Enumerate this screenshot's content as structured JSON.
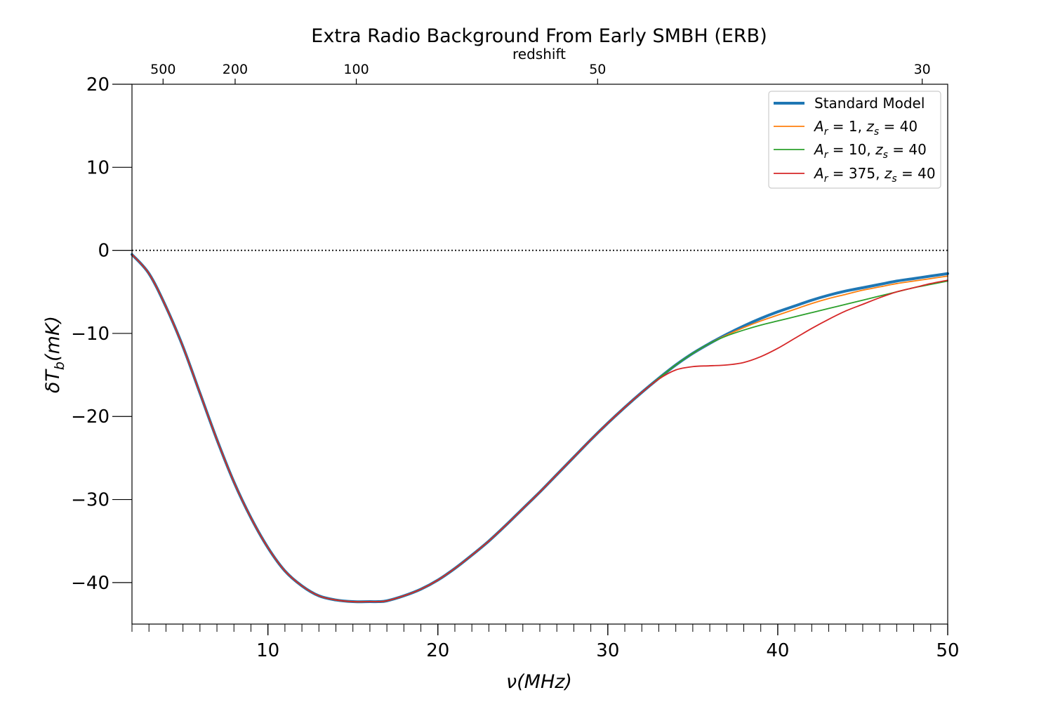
{
  "chart_data": {
    "type": "line",
    "title": "Extra Radio Background From Early SMBH (ERB)",
    "xlabel": "ν(MHz)",
    "ylabel": "δT_b(mK)",
    "top_axis_label": "redshift",
    "xlim": [
      2,
      50
    ],
    "ylim": [
      -45,
      20
    ],
    "x_ticks": [
      10,
      20,
      30,
      40,
      50
    ],
    "y_ticks": [
      20,
      10,
      0,
      -10,
      -20,
      -30,
      -40
    ],
    "top_ticks": [
      {
        "label": "500",
        "nu": 3.83
      },
      {
        "label": "200",
        "nu": 8.07
      },
      {
        "label": "100",
        "nu": 15.2
      },
      {
        "label": "50",
        "nu": 29.4
      },
      {
        "label": "30",
        "nu": 48.5
      }
    ],
    "reference_line": {
      "y": 0,
      "style": "dotted"
    },
    "grid": false,
    "legend_position": "upper right",
    "series": [
      {
        "name": "Standard Model",
        "color": "#1f77b4",
        "width": 4,
        "x": [
          2,
          3,
          4,
          5,
          6,
          7,
          8,
          9,
          10,
          11,
          12,
          13,
          14,
          15,
          16,
          16.5,
          17,
          18,
          19,
          20,
          21,
          22,
          23,
          24,
          25,
          26,
          27,
          28,
          29,
          30,
          31,
          32,
          33,
          34,
          35,
          36,
          37,
          38,
          39,
          40,
          41,
          42,
          43,
          44,
          45,
          46,
          47,
          48,
          49,
          50
        ],
        "y": [
          -0.5,
          -2.8,
          -6.8,
          -11.6,
          -17.2,
          -22.8,
          -27.9,
          -32.2,
          -35.8,
          -38.6,
          -40.4,
          -41.6,
          -42.1,
          -42.3,
          -42.3,
          -42.3,
          -42.2,
          -41.6,
          -40.8,
          -39.7,
          -38.3,
          -36.7,
          -35.0,
          -33.1,
          -31.1,
          -29.1,
          -27.0,
          -24.9,
          -22.8,
          -20.8,
          -18.9,
          -17.1,
          -15.4,
          -13.8,
          -12.4,
          -11.2,
          -10.1,
          -9.1,
          -8.2,
          -7.4,
          -6.7,
          -6.0,
          -5.4,
          -4.9,
          -4.5,
          -4.1,
          -3.7,
          -3.4,
          -3.1,
          -2.8
        ]
      },
      {
        "name": "A_r=1, z_s=40",
        "color": "#ff7f0e",
        "width": 1.8,
        "x": [
          2,
          3,
          4,
          5,
          6,
          7,
          8,
          9,
          10,
          11,
          12,
          13,
          14,
          15,
          16,
          16.5,
          17,
          18,
          19,
          20,
          21,
          22,
          23,
          24,
          25,
          26,
          27,
          28,
          29,
          30,
          31,
          32,
          33,
          34,
          35,
          36,
          37,
          38,
          39,
          40,
          41,
          42,
          43,
          44,
          45,
          46,
          47,
          48,
          49,
          50
        ],
        "y": [
          -0.5,
          -2.8,
          -6.8,
          -11.6,
          -17.2,
          -22.8,
          -27.9,
          -32.2,
          -35.8,
          -38.6,
          -40.4,
          -41.6,
          -42.1,
          -42.3,
          -42.3,
          -42.3,
          -42.2,
          -41.6,
          -40.8,
          -39.7,
          -38.3,
          -36.7,
          -35.0,
          -33.1,
          -31.1,
          -29.1,
          -27.0,
          -24.9,
          -22.8,
          -20.8,
          -18.9,
          -17.1,
          -15.4,
          -13.8,
          -12.4,
          -11.2,
          -10.2,
          -9.3,
          -8.5,
          -7.8,
          -7.1,
          -6.4,
          -5.8,
          -5.3,
          -4.8,
          -4.4,
          -4.0,
          -3.7,
          -3.4,
          -3.1
        ]
      },
      {
        "name": "A_r=10, z_s=40",
        "color": "#2ca02c",
        "width": 1.8,
        "x": [
          2,
          3,
          4,
          5,
          6,
          7,
          8,
          9,
          10,
          11,
          12,
          13,
          14,
          15,
          16,
          16.5,
          17,
          18,
          19,
          20,
          21,
          22,
          23,
          24,
          25,
          26,
          27,
          28,
          29,
          30,
          31,
          32,
          33,
          34,
          35,
          36,
          37,
          38,
          39,
          40,
          41,
          42,
          43,
          44,
          45,
          46,
          47,
          48,
          49,
          50
        ],
        "y": [
          -0.5,
          -2.8,
          -6.8,
          -11.6,
          -17.2,
          -22.8,
          -27.9,
          -32.2,
          -35.8,
          -38.6,
          -40.4,
          -41.6,
          -42.1,
          -42.3,
          -42.3,
          -42.3,
          -42.2,
          -41.6,
          -40.8,
          -39.7,
          -38.3,
          -36.7,
          -35.0,
          -33.1,
          -31.1,
          -29.1,
          -27.0,
          -24.9,
          -22.8,
          -20.8,
          -18.9,
          -17.1,
          -15.4,
          -13.8,
          -12.4,
          -11.2,
          -10.3,
          -9.6,
          -9.0,
          -8.5,
          -8.0,
          -7.5,
          -7.0,
          -6.5,
          -6.0,
          -5.5,
          -5.0,
          -4.5,
          -4.1,
          -3.7
        ]
      },
      {
        "name": "A_r=375, z_s=40",
        "color": "#d62728",
        "width": 1.8,
        "x": [
          2,
          3,
          4,
          5,
          6,
          7,
          8,
          9,
          10,
          11,
          12,
          13,
          14,
          15,
          16,
          16.5,
          17,
          18,
          19,
          20,
          21,
          22,
          23,
          24,
          25,
          26,
          27,
          28,
          29,
          30,
          31,
          32,
          33,
          34,
          35,
          36,
          37,
          38,
          39,
          40,
          41,
          42,
          43,
          44,
          45,
          46,
          47,
          48,
          49,
          50
        ],
        "y": [
          -0.5,
          -2.8,
          -6.8,
          -11.6,
          -17.2,
          -22.8,
          -27.9,
          -32.2,
          -35.8,
          -38.6,
          -40.4,
          -41.6,
          -42.1,
          -42.3,
          -42.3,
          -42.3,
          -42.2,
          -41.6,
          -40.8,
          -39.7,
          -38.3,
          -36.7,
          -35.0,
          -33.1,
          -31.1,
          -29.1,
          -27.0,
          -24.9,
          -22.8,
          -20.8,
          -18.9,
          -17.1,
          -15.5,
          -14.4,
          -14.0,
          -13.9,
          -13.8,
          -13.5,
          -12.8,
          -11.8,
          -10.6,
          -9.4,
          -8.3,
          -7.3,
          -6.5,
          -5.7,
          -5.0,
          -4.5,
          -4.0,
          -3.6
        ]
      }
    ]
  }
}
